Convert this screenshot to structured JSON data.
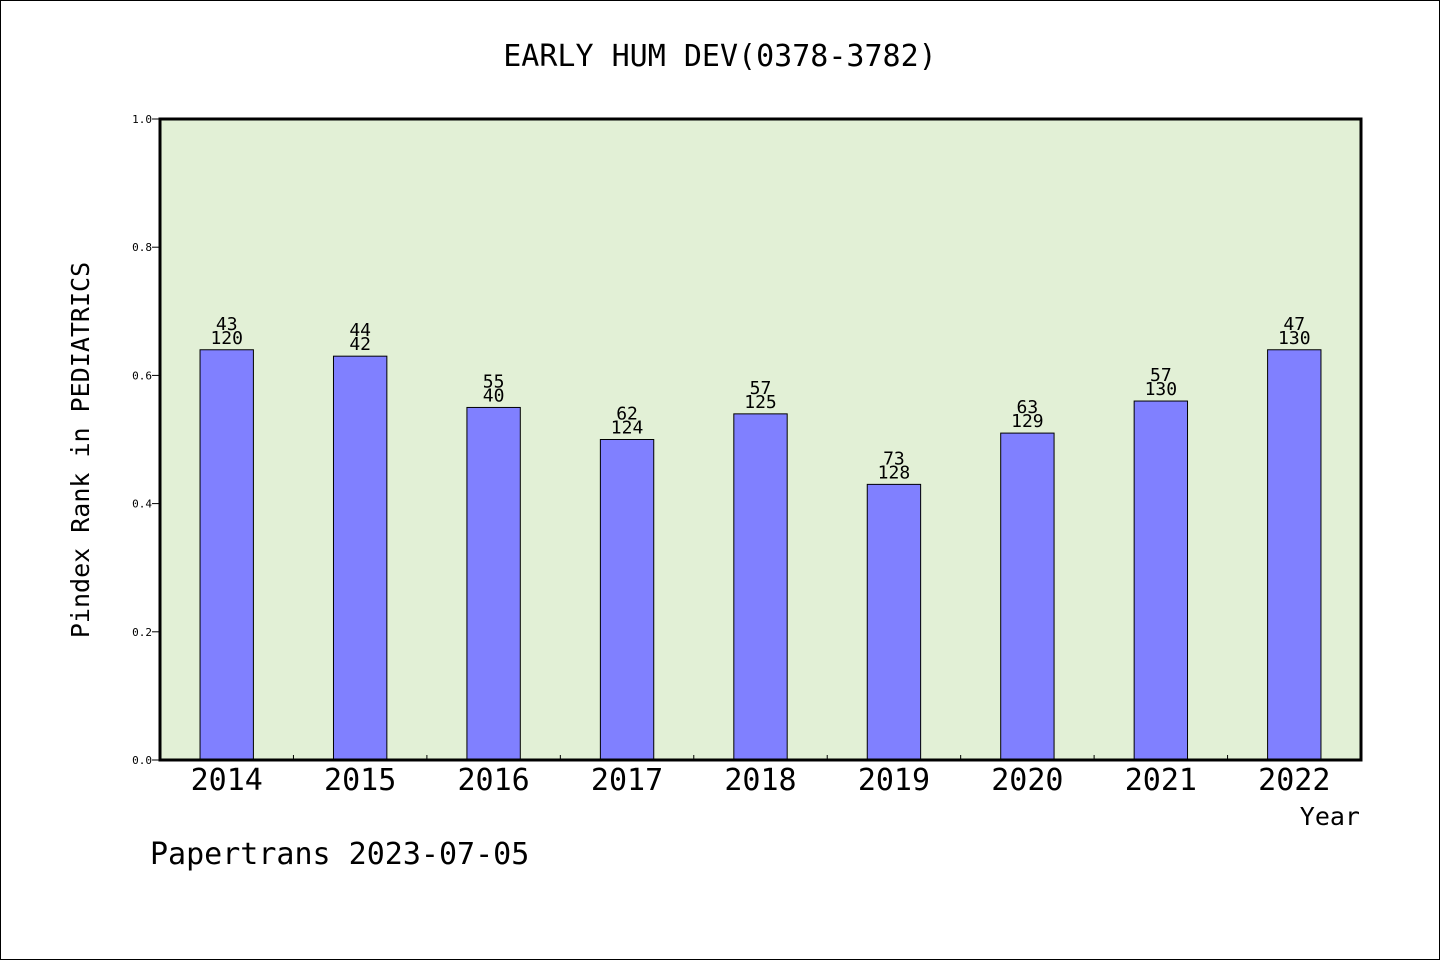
{
  "chart_data": {
    "type": "bar",
    "title": "EARLY HUM DEV(0378-3782)",
    "xlabel": "Year",
    "ylabel": "Pindex Rank in PEDIATRICS",
    "ylim": [
      0.0,
      1.0
    ],
    "yticks": [
      "0.0",
      "0.2",
      "0.4",
      "0.6",
      "0.8",
      "1.0"
    ],
    "categories": [
      "2014",
      "2015",
      "2016",
      "2017",
      "2018",
      "2019",
      "2020",
      "2021",
      "2022"
    ],
    "values": [
      0.64,
      0.63,
      0.55,
      0.5,
      0.54,
      0.43,
      0.51,
      0.56,
      0.64
    ],
    "label_top": [
      "43",
      "44",
      "55",
      "62",
      "57",
      "73",
      "63",
      "57",
      "47"
    ],
    "label_bottom": [
      "120",
      "42",
      "40",
      "124",
      "125",
      "128",
      "129",
      "130",
      "130"
    ],
    "grid": false,
    "colors": {
      "bar": "#8080ff",
      "plot_background": "#e2f0d6",
      "axis": "#000000"
    }
  },
  "footer": {
    "text": "Papertrans 2023-07-05"
  }
}
